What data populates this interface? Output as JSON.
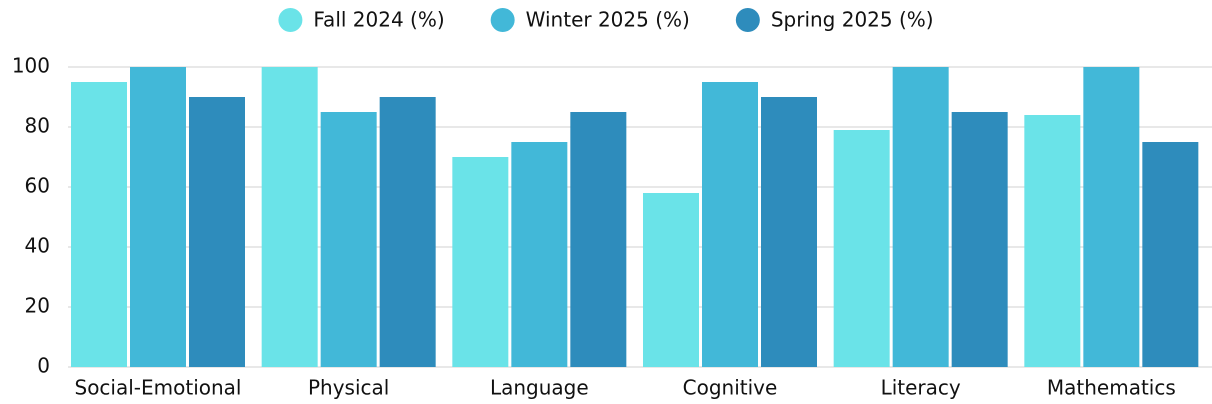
{
  "chart_data": {
    "type": "bar",
    "categories": [
      "Social-Emotional",
      "Physical",
      "Language",
      "Cognitive",
      "Literacy",
      "Mathematics"
    ],
    "series": [
      {
        "name": "Fall 2024 (%)",
        "color": "#6ae3e8",
        "values": [
          95,
          100,
          70,
          58,
          79,
          84
        ]
      },
      {
        "name": "Winter 2025 (%)",
        "color": "#42b8d8",
        "values": [
          100,
          85,
          75,
          95,
          100,
          100
        ]
      },
      {
        "name": "Spring 2025 (%)",
        "color": "#2e8cbc",
        "values": [
          90,
          90,
          85,
          90,
          85,
          75
        ]
      }
    ],
    "ylim": [
      0,
      100
    ],
    "yticks": [
      0,
      20,
      40,
      60,
      80,
      100
    ],
    "grid": true,
    "legend": "top"
  }
}
